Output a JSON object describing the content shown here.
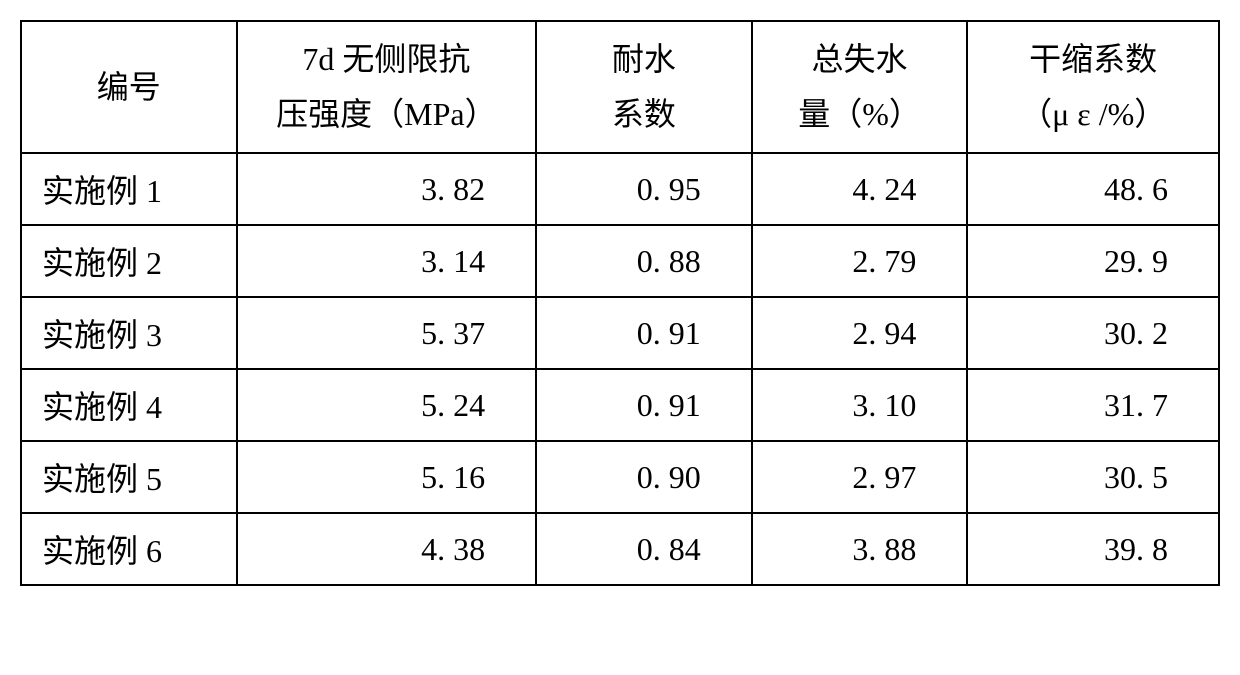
{
  "table": {
    "type": "table",
    "background_color": "#ffffff",
    "border_color": "#000000",
    "border_width": 2,
    "font_family": "SimSun",
    "font_size_pt": 24,
    "text_color": "#000000",
    "columns": [
      {
        "key": "label",
        "header_line1": "编号",
        "header_line2": "",
        "width_pct": 18,
        "align": "left"
      },
      {
        "key": "strength",
        "header_line1": "7d 无侧限抗",
        "header_line2": "压强度（MPa）",
        "width_pct": 25,
        "align": "right"
      },
      {
        "key": "water_coef",
        "header_line1": "耐水",
        "header_line2": "系数",
        "width_pct": 18,
        "align": "right"
      },
      {
        "key": "water_loss",
        "header_line1": "总失水",
        "header_line2": "量（%）",
        "width_pct": 18,
        "align": "right"
      },
      {
        "key": "shrink_coef",
        "header_line1": "干缩系数",
        "header_line2": "（μ ε /%）",
        "width_pct": 21,
        "align": "right"
      }
    ],
    "rows": [
      {
        "label": "实施例 1",
        "strength": "3. 82",
        "water_coef": "0. 95",
        "water_loss": "4. 24",
        "shrink_coef": "48. 6"
      },
      {
        "label": "实施例 2",
        "strength": "3. 14",
        "water_coef": "0. 88",
        "water_loss": "2. 79",
        "shrink_coef": "29. 9"
      },
      {
        "label": "实施例 3",
        "strength": "5. 37",
        "water_coef": "0. 91",
        "water_loss": "2. 94",
        "shrink_coef": "30. 2"
      },
      {
        "label": "实施例 4",
        "strength": "5. 24",
        "water_coef": "0. 91",
        "water_loss": "3. 10",
        "shrink_coef": "31. 7"
      },
      {
        "label": "实施例 5",
        "strength": "5. 16",
        "water_coef": "0. 90",
        "water_loss": "2. 97",
        "shrink_coef": "30. 5"
      },
      {
        "label": "实施例 6",
        "strength": "4. 38",
        "water_coef": "0. 84",
        "water_loss": "3. 88",
        "shrink_coef": "39. 8"
      }
    ]
  }
}
